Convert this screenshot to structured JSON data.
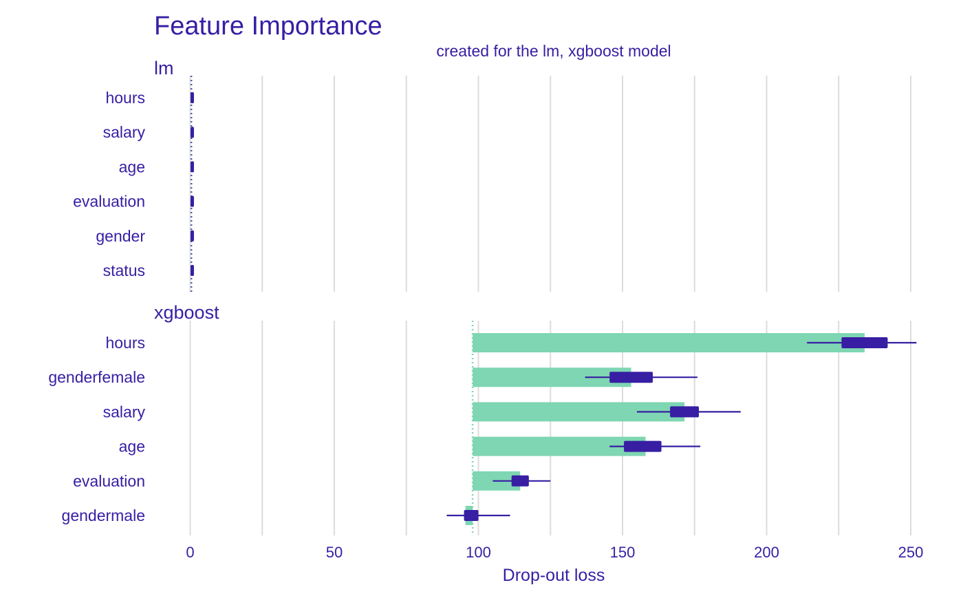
{
  "chart_data": {
    "type": "bar",
    "title": "Feature Importance",
    "subtitle": "created for the lm, xgboost model",
    "xlabel": "Drop-out loss",
    "xlim": [
      -15,
      255
    ],
    "xticks": [
      0,
      50,
      100,
      150,
      200,
      250
    ],
    "grid": "vertical",
    "colors": {
      "text": "#371ea3",
      "bar": "#7ed6b2",
      "boxplot": "#371ea3",
      "grid": "#dcdcdc",
      "baseline_lm": "#4a5aa8",
      "baseline_xgboost": "#7ed6b2"
    },
    "panels": [
      {
        "label": "lm",
        "baseline": 0.4,
        "features": [
          {
            "name": "hours",
            "value": 0.4,
            "whisker": [
              0.3,
              0.5
            ],
            "box": [
              0.35,
              0.45
            ]
          },
          {
            "name": "salary",
            "value": 0.4,
            "whisker": [
              0.3,
              0.5
            ],
            "box": [
              0.35,
              0.45
            ]
          },
          {
            "name": "age",
            "value": 0.4,
            "whisker": [
              0.3,
              0.5
            ],
            "box": [
              0.35,
              0.45
            ]
          },
          {
            "name": "evaluation",
            "value": 0.4,
            "whisker": [
              0.3,
              0.5
            ],
            "box": [
              0.35,
              0.45
            ]
          },
          {
            "name": "gender",
            "value": 0.4,
            "whisker": [
              0.3,
              0.5
            ],
            "box": [
              0.35,
              0.45
            ]
          },
          {
            "name": "status",
            "value": 0.4,
            "whisker": [
              0.3,
              0.5
            ],
            "box": [
              0.35,
              0.45
            ]
          }
        ]
      },
      {
        "label": "xgboost",
        "baseline": 98,
        "features": [
          {
            "name": "hours",
            "value": 234,
            "whisker": [
              214,
              252
            ],
            "box": [
              226,
              242
            ]
          },
          {
            "name": "genderfemale",
            "value": 153,
            "whisker": [
              137,
              176
            ],
            "box": [
              145.5,
              160.5
            ]
          },
          {
            "name": "salary",
            "value": 171.5,
            "whisker": [
              155,
              191
            ],
            "box": [
              166.5,
              176.5
            ]
          },
          {
            "name": "age",
            "value": 158,
            "whisker": [
              145.5,
              177
            ],
            "box": [
              150.5,
              163.5
            ]
          },
          {
            "name": "evaluation",
            "value": 114.5,
            "whisker": [
              105,
              125
            ],
            "box": [
              111.5,
              117.5
            ]
          },
          {
            "name": "gendermale",
            "value": 95.5,
            "whisker": [
              89,
              111
            ],
            "box": [
              95,
              100
            ]
          }
        ]
      }
    ]
  }
}
